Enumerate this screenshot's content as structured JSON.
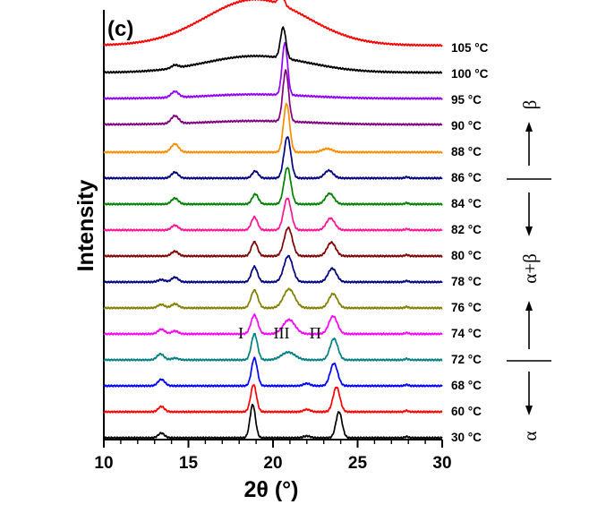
{
  "chart_data": {
    "type": "line",
    "panel_label": "(c)",
    "xlabel": "2θ (°)",
    "ylabel": "Intensity",
    "xlim": [
      10,
      30
    ],
    "x_ticks": [
      "10",
      "15",
      "20",
      "25",
      "30"
    ],
    "y_ticks_shown": false,
    "series": [
      {
        "name": "30 °C",
        "color": "#000000",
        "broad": 0.0,
        "halo_amp": 0.0,
        "peaks": [
          [
            13.4,
            0.08,
            0.18
          ],
          [
            18.8,
            0.56,
            0.16
          ],
          [
            23.9,
            0.44,
            0.18
          ],
          [
            22.0,
            0.03,
            0.2
          ],
          [
            27.9,
            0.02,
            0.1
          ]
        ]
      },
      {
        "name": "60 °C",
        "color": "#ff0000",
        "broad": 0.0,
        "halo_amp": 0.0,
        "peaks": [
          [
            13.4,
            0.09,
            0.18
          ],
          [
            18.85,
            0.46,
            0.17
          ],
          [
            23.75,
            0.42,
            0.2
          ],
          [
            22.0,
            0.04,
            0.2
          ],
          [
            27.9,
            0.02,
            0.1
          ]
        ]
      },
      {
        "name": "68 °C",
        "color": "#0000ff",
        "broad": 0.0,
        "halo_amp": 0.0,
        "peaks": [
          [
            13.4,
            0.11,
            0.2
          ],
          [
            18.9,
            0.47,
            0.17
          ],
          [
            23.6,
            0.38,
            0.22
          ],
          [
            22.0,
            0.04,
            0.2
          ],
          [
            27.9,
            0.02,
            0.1
          ]
        ]
      },
      {
        "name": "72 °C",
        "color": "#008080",
        "broad": 0.0,
        "halo_amp": 0.0,
        "peaks": [
          [
            13.35,
            0.1,
            0.2
          ],
          [
            18.9,
            0.44,
            0.18
          ],
          [
            20.9,
            0.13,
            0.4
          ],
          [
            23.6,
            0.36,
            0.23
          ],
          [
            14.2,
            0.03,
            0.2
          ],
          [
            27.9,
            0.02,
            0.1
          ]
        ]
      },
      {
        "name": "74 °C",
        "color": "#ff00ff",
        "broad": 0.0,
        "halo_amp": 0.0,
        "peaks": [
          [
            13.4,
            0.08,
            0.2
          ],
          [
            14.2,
            0.05,
            0.2
          ],
          [
            18.9,
            0.32,
            0.2
          ],
          [
            20.95,
            0.24,
            0.35
          ],
          [
            23.55,
            0.3,
            0.25
          ],
          [
            27.9,
            0.02,
            0.1
          ]
        ]
      },
      {
        "name": "76 °C",
        "color": "#808000",
        "broad": 0.0,
        "halo_amp": 0.0,
        "peaks": [
          [
            13.4,
            0.06,
            0.2
          ],
          [
            14.2,
            0.07,
            0.2
          ],
          [
            18.9,
            0.3,
            0.2
          ],
          [
            20.95,
            0.32,
            0.33
          ],
          [
            23.55,
            0.24,
            0.25
          ],
          [
            27.9,
            0.02,
            0.1
          ]
        ]
      },
      {
        "name": "78 °C",
        "color": "#000080",
        "broad": 0.0,
        "halo_amp": 0.0,
        "peaks": [
          [
            13.4,
            0.04,
            0.2
          ],
          [
            14.2,
            0.08,
            0.2
          ],
          [
            18.9,
            0.26,
            0.18
          ],
          [
            20.9,
            0.44,
            0.26
          ],
          [
            23.5,
            0.23,
            0.25
          ],
          [
            27.9,
            0.02,
            0.1
          ]
        ]
      },
      {
        "name": "80 °C",
        "color": "#800000",
        "broad": 0.0,
        "halo_amp": 0.0,
        "peaks": [
          [
            14.2,
            0.08,
            0.2
          ],
          [
            18.9,
            0.24,
            0.18
          ],
          [
            20.9,
            0.48,
            0.24
          ],
          [
            23.45,
            0.23,
            0.25
          ],
          [
            27.9,
            0.02,
            0.1
          ]
        ]
      },
      {
        "name": "82 °C",
        "color": "#ff1493",
        "broad": 0.0,
        "halo_amp": 0.0,
        "peaks": [
          [
            14.2,
            0.08,
            0.2
          ],
          [
            18.9,
            0.22,
            0.18
          ],
          [
            20.85,
            0.54,
            0.22
          ],
          [
            23.4,
            0.2,
            0.25
          ],
          [
            27.9,
            0.02,
            0.1
          ]
        ]
      },
      {
        "name": "84 °C",
        "color": "#008000",
        "broad": 0.0,
        "halo_amp": 0.0,
        "peaks": [
          [
            14.2,
            0.1,
            0.2
          ],
          [
            18.95,
            0.17,
            0.18
          ],
          [
            20.85,
            0.62,
            0.2
          ],
          [
            23.35,
            0.18,
            0.25
          ],
          [
            27.9,
            0.02,
            0.1
          ]
        ]
      },
      {
        "name": "86 °C",
        "color": "#000080",
        "broad": 0.0,
        "halo_amp": 0.0,
        "peaks": [
          [
            14.2,
            0.1,
            0.2
          ],
          [
            18.95,
            0.12,
            0.18
          ],
          [
            20.85,
            0.7,
            0.2
          ],
          [
            23.3,
            0.13,
            0.25
          ],
          [
            27.9,
            0.02,
            0.1
          ]
        ]
      },
      {
        "name": "88 °C",
        "color": "#ff8c00",
        "broad": 0.0,
        "halo_amp": 0.0,
        "peaks": [
          [
            14.2,
            0.14,
            0.22
          ],
          [
            20.8,
            0.82,
            0.18
          ],
          [
            23.2,
            0.06,
            0.3
          ]
        ]
      },
      {
        "name": "90 °C",
        "color": "#800080",
        "broad": 0.03,
        "halo_amp": 0.06,
        "peaks": [
          [
            14.2,
            0.13,
            0.22
          ],
          [
            20.75,
            0.86,
            0.17
          ]
        ]
      },
      {
        "name": "95 °C",
        "color": "#9400ff",
        "broad": 0.03,
        "halo_amp": 0.07,
        "peaks": [
          [
            14.2,
            0.1,
            0.22
          ],
          [
            20.7,
            0.88,
            0.16
          ]
        ]
      },
      {
        "name": "100 °C",
        "color": "#000000",
        "broad": 0.03,
        "halo_amp": 0.28,
        "peaks": [
          [
            14.2,
            0.05,
            0.2
          ],
          [
            20.6,
            0.52,
            0.16
          ]
        ]
      },
      {
        "name": "105 °C",
        "color": "#ff0000",
        "broad": 0.05,
        "halo_amp": 0.78,
        "peaks": [
          [
            20.5,
            0.18,
            0.16
          ]
        ]
      }
    ],
    "peak_annotations": [
      {
        "text": "I",
        "x": 18.1,
        "series": "72 °C"
      },
      {
        "text": "III",
        "x": 20.5,
        "series": "72 °C"
      },
      {
        "text": "Π",
        "x": 22.5,
        "series": "72 °C"
      }
    ],
    "phase_labels": [
      "α",
      "α+β",
      "β"
    ]
  }
}
